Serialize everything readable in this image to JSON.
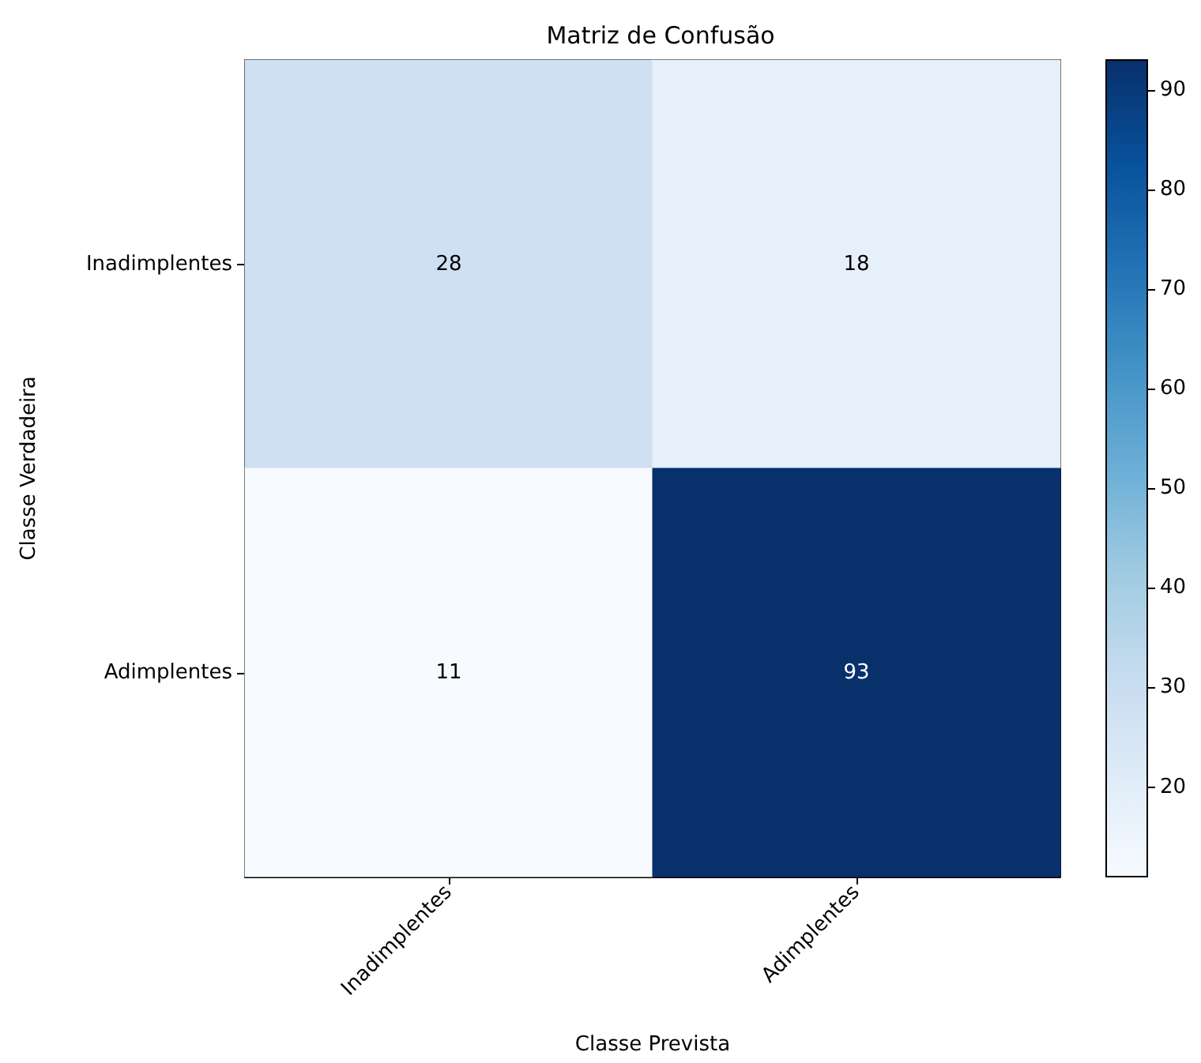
{
  "chart_data": {
    "type": "heatmap",
    "title": "Matriz de Confusão",
    "xlabel": "Classe Prevista",
    "ylabel": "Classe Verdadeira",
    "categories": [
      "Inadimplentes",
      "Adimplentes"
    ],
    "y_categories": [
      "Inadimplentes",
      "Adimplentes"
    ],
    "cells": [
      [
        28,
        18
      ],
      [
        11,
        93
      ]
    ],
    "clim": [
      11,
      93
    ],
    "cticks": [
      20,
      30,
      40,
      50,
      60,
      70,
      80,
      90
    ],
    "data_labels": true
  }
}
